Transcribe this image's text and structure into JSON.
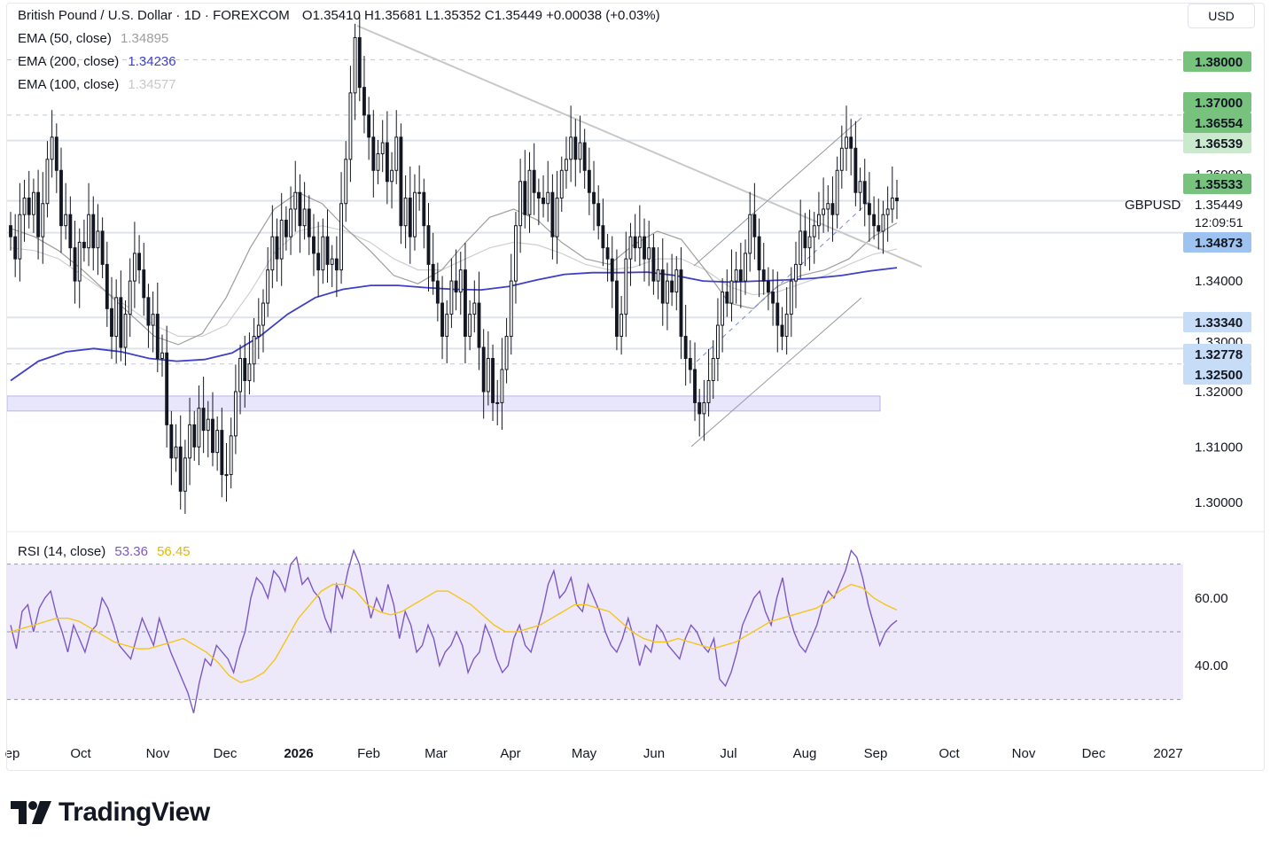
{
  "header": {
    "instrument": "British Pound / U.S. Dollar · 1D · FOREXCOM",
    "ohlc": "O1.35410  H1.35681  L1.35352  C1.35449  +0.00038 (+0.03%)",
    "currency": "USD"
  },
  "indicators": [
    {
      "label": "EMA (50, close)",
      "value": "1.34895",
      "color": "#9e9e9e"
    },
    {
      "label": "EMA (200, close)",
      "value": "1.34236",
      "color": "#3f3fc8"
    },
    {
      "label": "EMA (100, close)",
      "value": "1.34577",
      "color": "#c8c8c8"
    }
  ],
  "rsi_legend": {
    "label": "RSI (14, close)",
    "value": "53.36",
    "ma_value": "56.45",
    "color": "#7e57c2",
    "ma_color": "#f5c518"
  },
  "brand": {
    "name": "TradingView"
  },
  "chart_data": [
    {
      "type": "candlestick",
      "symbol": "GBPUSD",
      "timeframe": "1D",
      "title": "British Pound / U.S. Dollar · 1D · FOREXCOM",
      "x_labels": [
        "ep",
        "Oct",
        "Nov",
        "Dec",
        "2026",
        "Feb",
        "Mar",
        "Apr",
        "May",
        "Jun",
        "Jul",
        "Aug",
        "Sep",
        "Oct",
        "Nov",
        "Dec",
        "2027"
      ],
      "ylim": [
        1.295,
        1.39
      ],
      "y_ticks": [
        "1.30000",
        "1.31000",
        "1.32000",
        "1.34000"
      ],
      "last_price": {
        "label": "GBPUSD",
        "value": "1.35449",
        "countdown": "12:09:51"
      },
      "price_labels": [
        {
          "value": "1.38000",
          "style": "green"
        },
        {
          "value": "1.37000",
          "style": "green"
        },
        {
          "value": "1.36554",
          "style": "green"
        },
        {
          "value": "1.36539",
          "style": "lightgreen"
        },
        {
          "value": "1.36000",
          "style": "tick"
        },
        {
          "value": "1.35533",
          "style": "green"
        },
        {
          "value": "1.34873",
          "style": "blue"
        },
        {
          "value": "1.33340",
          "style": "lightblue"
        },
        {
          "value": "1.33000",
          "style": "tick"
        },
        {
          "value": "1.32778",
          "style": "lightblue"
        },
        {
          "value": "1.32500",
          "style": "lightblue"
        }
      ],
      "horizontal_levels": [
        1.38,
        1.37,
        1.36539,
        1.35449,
        1.34873,
        1.3334,
        1.32778,
        1.325
      ],
      "support_zone": [
        1.3165,
        1.3192
      ],
      "closes": [
        1.348,
        1.344,
        1.352,
        1.355,
        1.352,
        1.356,
        1.348,
        1.354,
        1.362,
        1.366,
        1.36,
        1.35,
        1.352,
        1.346,
        1.34,
        1.347,
        1.346,
        1.352,
        1.346,
        1.349,
        1.343,
        1.335,
        1.33,
        1.337,
        1.328,
        1.334,
        1.34,
        1.345,
        1.342,
        1.337,
        1.332,
        1.334,
        1.326,
        1.327,
        1.314,
        1.308,
        1.31,
        1.302,
        1.308,
        1.314,
        1.31,
        1.317,
        1.313,
        1.315,
        1.309,
        1.313,
        1.305,
        1.305,
        1.312,
        1.32,
        1.326,
        1.322,
        1.325,
        1.33,
        1.332,
        1.336,
        1.342,
        1.348,
        1.344,
        1.351,
        1.348,
        1.353,
        1.356,
        1.35,
        1.353,
        1.348,
        1.345,
        1.342,
        1.348,
        1.343,
        1.344,
        1.342,
        1.354,
        1.362,
        1.374,
        1.384,
        1.375,
        1.37,
        1.366,
        1.36,
        1.363,
        1.365,
        1.358,
        1.36,
        1.366,
        1.35,
        1.355,
        1.348,
        1.356,
        1.356,
        1.35,
        1.343,
        1.34,
        1.336,
        1.33,
        1.334,
        1.34,
        1.338,
        1.342,
        1.33,
        1.334,
        1.336,
        1.328,
        1.32,
        1.326,
        1.318,
        1.318,
        1.324,
        1.33,
        1.34,
        1.35,
        1.358,
        1.352,
        1.36,
        1.356,
        1.355,
        1.354,
        1.356,
        1.348,
        1.355,
        1.36,
        1.362,
        1.366,
        1.362,
        1.365,
        1.36,
        1.356,
        1.354,
        1.35,
        1.346,
        1.344,
        1.34,
        1.33,
        1.334,
        1.344,
        1.348,
        1.346,
        1.348,
        1.344,
        1.346,
        1.34,
        1.342,
        1.336,
        1.34,
        1.338,
        1.342,
        1.33,
        1.326,
        1.324,
        1.318,
        1.316,
        1.318,
        1.322,
        1.326,
        1.332,
        1.338,
        1.336,
        1.34,
        1.342,
        1.34,
        1.345,
        1.352,
        1.348,
        1.342,
        1.34,
        1.338,
        1.336,
        1.332,
        1.33,
        1.334,
        1.34,
        1.343,
        1.349,
        1.346,
        1.348,
        1.35,
        1.352,
        1.353,
        1.354,
        1.352,
        1.36,
        1.364,
        1.366,
        1.364,
        1.356,
        1.358,
        1.354,
        1.352,
        1.35,
        1.349,
        1.352,
        1.353,
        1.355,
        1.3545
      ],
      "ema_50": [
        1.3495,
        1.348,
        1.3455,
        1.342,
        1.338,
        1.334,
        1.33,
        1.3285,
        1.3305,
        1.337,
        1.346,
        1.353,
        1.356,
        1.354,
        1.3495,
        1.3455,
        1.341,
        1.3395,
        1.342,
        1.347,
        1.3515,
        1.353,
        1.351,
        1.347,
        1.344,
        1.343,
        1.3465,
        1.349,
        1.3475,
        1.342,
        1.336,
        1.335,
        1.339,
        1.341,
        1.342,
        1.344,
        1.348,
        1.3505
      ],
      "ema_100": [
        1.346,
        1.3455,
        1.344,
        1.341,
        1.338,
        1.335,
        1.332,
        1.33,
        1.33,
        1.332,
        1.338,
        1.345,
        1.349,
        1.35,
        1.349,
        1.347,
        1.344,
        1.342,
        1.342,
        1.344,
        1.346,
        1.347,
        1.3465,
        1.345,
        1.343,
        1.342,
        1.3425,
        1.344,
        1.344,
        1.342,
        1.339,
        1.3375,
        1.338,
        1.3395,
        1.341,
        1.343,
        1.3448,
        1.3458
      ],
      "ema_200": [
        1.322,
        1.3255,
        1.3272,
        1.3278,
        1.3272,
        1.326,
        1.3255,
        1.3258,
        1.327,
        1.33,
        1.334,
        1.337,
        1.3385,
        1.3392,
        1.3392,
        1.3388,
        1.3385,
        1.3384,
        1.339,
        1.3402,
        1.3412,
        1.3415,
        1.3415,
        1.3416,
        1.341,
        1.34,
        1.3398,
        1.34,
        1.3402,
        1.3405,
        1.341,
        1.3418,
        1.3424
      ]
    },
    {
      "type": "line",
      "title": "RSI (14, close)",
      "ylim": [
        22,
        78
      ],
      "y_ticks": [
        "40.00",
        "60.00"
      ],
      "bands": [
        30,
        50,
        70
      ],
      "series": [
        {
          "name": "RSI (14, close)",
          "color": "#7e57c2",
          "values": [
            52,
            45,
            56,
            58,
            50,
            57,
            60,
            62,
            55,
            50,
            44,
            52,
            48,
            44,
            50,
            52,
            60,
            57,
            52,
            46,
            44,
            42,
            48,
            54,
            50,
            46,
            54,
            49,
            44,
            40,
            36,
            32,
            26,
            35,
            42,
            40,
            46,
            44,
            42,
            38,
            45,
            50,
            60,
            66,
            64,
            60,
            68,
            66,
            62,
            70,
            72,
            64,
            66,
            62,
            60,
            54,
            50,
            64,
            60,
            68,
            74,
            70,
            62,
            54,
            60,
            56,
            64,
            58,
            48,
            56,
            52,
            44,
            46,
            52,
            48,
            40,
            44,
            46,
            50,
            46,
            38,
            42,
            44,
            52,
            48,
            42,
            38,
            40,
            48,
            52,
            46,
            44,
            50,
            56,
            64,
            68,
            60,
            62,
            66,
            58,
            56,
            64,
            60,
            56,
            50,
            46,
            44,
            48,
            54,
            48,
            40,
            46,
            44,
            52,
            50,
            46,
            44,
            42,
            48,
            52,
            50,
            46,
            44,
            48,
            36,
            34,
            38,
            44,
            52,
            56,
            60,
            62,
            56,
            52,
            60,
            66,
            56,
            50,
            46,
            44,
            48,
            52,
            58,
            62,
            60,
            64,
            68,
            74,
            72,
            66,
            58,
            52,
            46,
            50,
            52,
            53.36
          ]
        },
        {
          "name": "RSI MA",
          "color": "#f5c518",
          "values": [
            50,
            51,
            52,
            53,
            54,
            54,
            53,
            51,
            49,
            47,
            46,
            45,
            45,
            46,
            47,
            48,
            46,
            44,
            41,
            37,
            35,
            36,
            38,
            42,
            48,
            54,
            58,
            62,
            64,
            64,
            62,
            58,
            56,
            55,
            56,
            58,
            60,
            62,
            62,
            60,
            58,
            55,
            52,
            50,
            50,
            51,
            52,
            54,
            56,
            58,
            58,
            57,
            56,
            53,
            50,
            48,
            47,
            47,
            48,
            47,
            46,
            45,
            46,
            47,
            49,
            51,
            53,
            54,
            55,
            56,
            57,
            59,
            62,
            64,
            63,
            60,
            58,
            56.45
          ]
        }
      ]
    }
  ]
}
